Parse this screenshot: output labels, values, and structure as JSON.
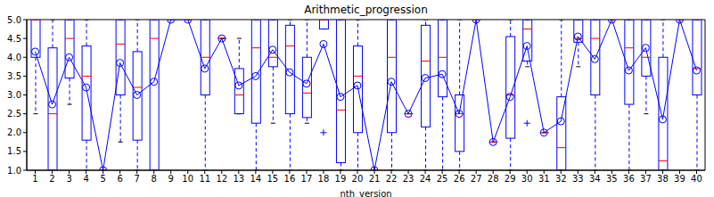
{
  "chart_data": {
    "type": "box",
    "title": "Arithmetic_progression",
    "x_label": "nth_version",
    "x": [
      1,
      2,
      3,
      4,
      5,
      6,
      7,
      8,
      9,
      10,
      11,
      12,
      13,
      14,
      15,
      16,
      17,
      18,
      19,
      20,
      21,
      22,
      23,
      24,
      25,
      26,
      27,
      28,
      29,
      30,
      31,
      32,
      33,
      34,
      35,
      36,
      37,
      38,
      39,
      40
    ],
    "whisker_low": [
      2.5,
      1.0,
      2.75,
      1.0,
      1.0,
      1.75,
      1.0,
      1.0,
      5.0,
      5.0,
      1.0,
      4.5,
      2.5,
      1.0,
      2.25,
      1.0,
      2.25,
      4.75,
      1.0,
      1.0,
      1.0,
      1.0,
      2.5,
      1.0,
      1.0,
      1.0,
      5.0,
      1.75,
      1.0,
      3.75,
      2.0,
      1.0,
      3.75,
      1.0,
      5.0,
      1.0,
      2.5,
      1.0,
      5.0,
      1.0
    ],
    "q1": [
      4.0,
      1.0,
      3.45,
      1.8,
      1.0,
      3.0,
      1.8,
      1.0,
      5.0,
      5.0,
      3.0,
      4.5,
      2.5,
      2.25,
      3.75,
      2.5,
      2.4,
      4.75,
      1.2,
      2.0,
      1.0,
      2.0,
      2.5,
      2.15,
      2.95,
      1.5,
      5.0,
      1.75,
      1.85,
      3.9,
      2.0,
      1.0,
      4.4,
      3.0,
      5.0,
      2.75,
      3.5,
      1.0,
      5.0,
      3.0
    ],
    "median": [
      5.0,
      2.5,
      4.5,
      3.5,
      1.0,
      4.35,
      3.2,
      4.5,
      5.0,
      5.0,
      4.0,
      4.5,
      3.0,
      4.25,
      4.0,
      4.3,
      3.05,
      5.0,
      2.6,
      3.5,
      1.0,
      4.0,
      2.5,
      3.9,
      4.0,
      2.5,
      5.0,
      1.75,
      3.0,
      4.75,
      2.0,
      1.6,
      4.5,
      4.5,
      5.0,
      4.25,
      4.0,
      1.25,
      5.0,
      3.7
    ],
    "q3": [
      5.0,
      4.25,
      5.0,
      4.3,
      1.0,
      5.0,
      4.15,
      5.0,
      5.0,
      5.0,
      5.0,
      4.5,
      3.7,
      5.0,
      5.0,
      4.85,
      4.0,
      5.0,
      5.0,
      4.3,
      1.0,
      5.0,
      2.5,
      4.85,
      5.0,
      3.0,
      5.0,
      1.75,
      4.55,
      5.0,
      2.0,
      2.95,
      5.0,
      5.0,
      5.0,
      5.0,
      5.0,
      4.0,
      5.0,
      5.0
    ],
    "whisker_high": [
      5.0,
      5.0,
      5.0,
      5.0,
      1.0,
      5.0,
      5.0,
      5.0,
      5.0,
      5.0,
      5.0,
      4.5,
      4.5,
      5.0,
      5.0,
      5.0,
      5.0,
      5.0,
      5.0,
      5.0,
      1.0,
      5.0,
      2.5,
      5.0,
      5.0,
      5.0,
      5.0,
      1.75,
      5.0,
      5.0,
      2.0,
      5.0,
      5.0,
      5.0,
      5.0,
      5.0,
      5.0,
      5.0,
      5.0,
      5.0
    ],
    "mean": [
      4.15,
      2.75,
      4.0,
      3.2,
      1.0,
      3.85,
      3.0,
      3.35,
      5.0,
      5.0,
      3.7,
      4.5,
      3.25,
      3.5,
      4.2,
      3.6,
      3.3,
      4.35,
      2.95,
      3.25,
      1.0,
      3.35,
      2.5,
      3.45,
      3.55,
      2.5,
      5.0,
      1.75,
      2.95,
      4.3,
      2.0,
      2.3,
      4.55,
      3.95,
      5.0,
      3.65,
      4.25,
      2.35,
      5.0,
      3.65
    ],
    "outliers": [
      {
        "x": 18,
        "y": 2.0
      },
      {
        "x": 30,
        "y": 2.25
      }
    ],
    "color": "#0000ff",
    "marker": "o",
    "xlim": [
      0.5,
      40.5
    ],
    "xticks": [
      1,
      2,
      3,
      4,
      5,
      6,
      7,
      8,
      9,
      10,
      11,
      12,
      13,
      14,
      15,
      16,
      17,
      18,
      19,
      20,
      21,
      22,
      23,
      24,
      25,
      26,
      27,
      28,
      29,
      30,
      31,
      32,
      33,
      34,
      35,
      36,
      37,
      38,
      39,
      40
    ],
    "ylim": [
      1.0,
      5.0
    ],
    "yticks": [
      {
        "value": 1.0,
        "label": "1.0"
      },
      1.5,
      {
        "value": 2.0,
        "label": "2.0"
      },
      2.5,
      {
        "value": 3.0,
        "label": "3.0"
      },
      3.5,
      {
        "value": 4.0,
        "label": "4.0"
      },
      4.5,
      {
        "value": 5.0,
        "label": "5.0"
      }
    ]
  }
}
